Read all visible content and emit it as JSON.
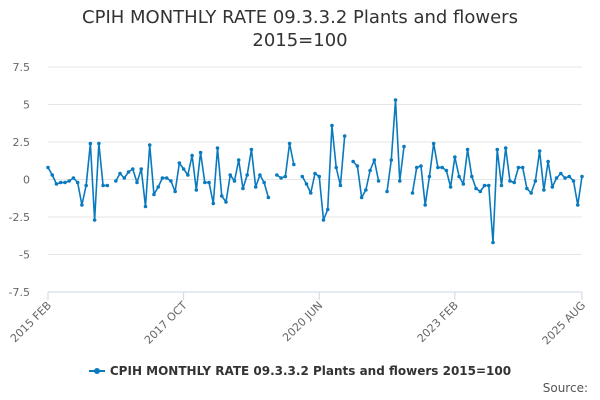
{
  "chart_data": {
    "type": "line",
    "title": "CPIH MONTHLY RATE 09.3.3.2 Plants and flowers",
    "subtitle": "2015=100",
    "xlabel": "",
    "ylabel": "",
    "ylim": [
      -7.5,
      7.5
    ],
    "yticks": [
      -7.5,
      -5,
      -2.5,
      0,
      2.5,
      5,
      7.5
    ],
    "ytick_labels": [
      "-7.5",
      "-5",
      "-2.5",
      "0",
      "2.5",
      "5",
      "7.5"
    ],
    "xtick_labels": [
      {
        "label": "2015 FEB",
        "index": 0
      },
      {
        "label": "2017 OCT",
        "index": 32
      },
      {
        "label": "2020 JUN",
        "index": 64
      },
      {
        "label": "2023 FEB",
        "index": 96
      },
      {
        "label": "2025 AUG",
        "index": 126
      }
    ],
    "grid": true,
    "legend": "bottom",
    "series": [
      {
        "name": "CPIH MONTHLY RATE 09.3.3.2 Plants and flowers 2015=100",
        "color": "#0a7abf",
        "values": [
          0.8,
          0.3,
          -0.3,
          -0.2,
          -0.2,
          -0.1,
          0.1,
          -0.2,
          -1.7,
          -0.4,
          2.4,
          -2.7,
          2.4,
          -0.4,
          -0.4,
          null,
          -0.1,
          0.4,
          0.1,
          0.5,
          0.7,
          -0.2,
          0.7,
          -1.8,
          2.3,
          -1.0,
          -0.5,
          0.1,
          0.1,
          -0.1,
          -0.8,
          1.1,
          0.7,
          0.3,
          1.6,
          -0.7,
          1.8,
          -0.2,
          -0.2,
          -1.6,
          2.1,
          -1.1,
          -1.5,
          0.3,
          -0.1,
          1.3,
          -0.6,
          0.3,
          2.0,
          -0.5,
          0.3,
          -0.2,
          -1.2,
          null,
          0.3,
          0.1,
          0.2,
          2.4,
          1.0,
          null,
          0.2,
          -0.3,
          -0.9,
          0.4,
          0.2,
          -2.7,
          -2.0,
          3.6,
          0.8,
          -0.4,
          2.9,
          null,
          1.2,
          0.9,
          -1.2,
          -0.7,
          0.6,
          1.3,
          -0.1,
          null,
          -0.8,
          1.3,
          5.3,
          -0.1,
          2.2,
          null,
          -0.9,
          0.8,
          0.9,
          -1.7,
          0.2,
          2.4,
          0.8,
          0.8,
          0.6,
          -0.5,
          1.5,
          0.2,
          -0.3,
          2.0,
          0.2,
          -0.6,
          -0.8,
          -0.4,
          -0.4,
          -4.2,
          2.0,
          -0.4,
          2.1,
          -0.1,
          -0.2,
          0.8,
          0.8,
          -0.6,
          -0.9,
          -0.1,
          1.9,
          -0.7,
          1.2,
          -0.5,
          0.1,
          0.4,
          0.1,
          0.2,
          -0.1,
          -1.7,
          0.2
        ]
      }
    ]
  },
  "source_label": "Source:"
}
